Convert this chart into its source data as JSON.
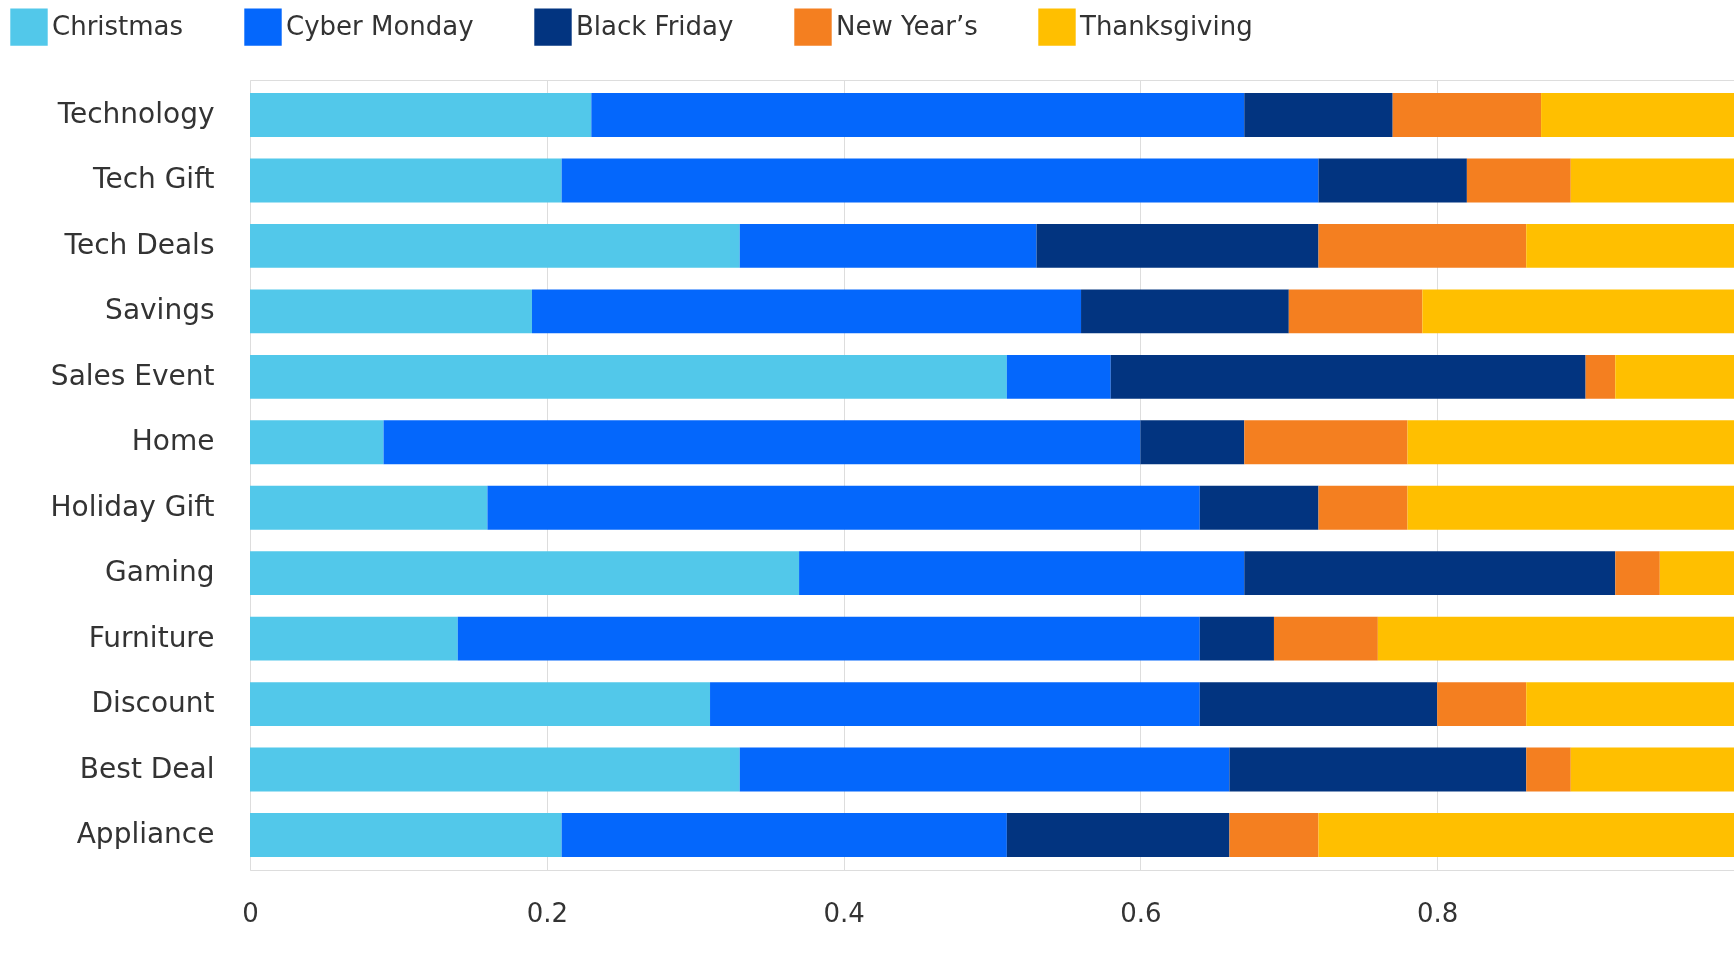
{
  "chart_data": {
    "type": "bar",
    "orientation": "horizontal",
    "stacked": true,
    "categories": [
      "Technology",
      "Tech Gift",
      "Tech Deals",
      "Savings",
      "Sales Event",
      "Home",
      "Holiday Gift",
      "Gaming",
      "Furniture",
      "Discount",
      "Best Deal",
      "Appliance"
    ],
    "series": [
      {
        "name": "Christmas",
        "color": "#52c8ea",
        "values": [
          0.23,
          0.21,
          0.33,
          0.19,
          0.51,
          0.09,
          0.16,
          0.37,
          0.14,
          0.31,
          0.33,
          0.21
        ]
      },
      {
        "name": "Cyber Monday",
        "color": "#0467fc",
        "values": [
          0.44,
          0.51,
          0.2,
          0.37,
          0.07,
          0.51,
          0.48,
          0.3,
          0.5,
          0.33,
          0.33,
          0.3
        ]
      },
      {
        "name": "Black Friday",
        "color": "#023480",
        "values": [
          0.1,
          0.1,
          0.19,
          0.14,
          0.32,
          0.07,
          0.08,
          0.25,
          0.05,
          0.16,
          0.2,
          0.15
        ]
      },
      {
        "name": "New Year’s",
        "color": "#f47f20",
        "values": [
          0.1,
          0.07,
          0.14,
          0.09,
          0.02,
          0.11,
          0.06,
          0.03,
          0.07,
          0.06,
          0.03,
          0.06
        ]
      },
      {
        "name": "Thanksgiving",
        "color": "#ffbf00",
        "values": [
          0.13,
          0.11,
          0.14,
          0.21,
          0.08,
          0.22,
          0.22,
          0.05,
          0.24,
          0.14,
          0.11,
          0.28
        ]
      }
    ],
    "xlim": [
      0,
      1
    ],
    "xticks": [
      0,
      0.2,
      0.4,
      0.6,
      0.8
    ],
    "grid": true,
    "legend": "top left"
  }
}
